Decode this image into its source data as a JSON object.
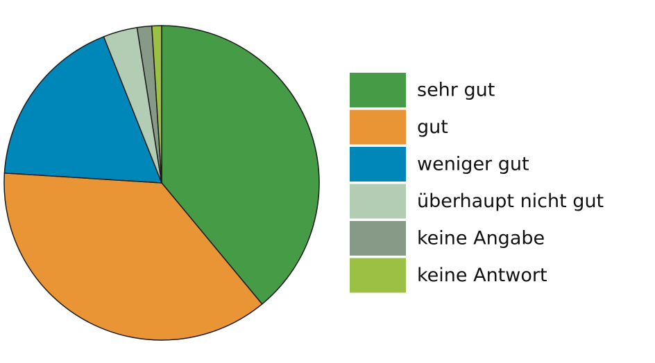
{
  "chart_data": {
    "type": "pie",
    "categories": [
      "sehr gut",
      "gut",
      "weniger gut",
      "überhaupt nicht gut",
      "keine Angabe",
      "keine Antwort"
    ],
    "values": [
      39,
      37,
      18,
      3.5,
      1.5,
      1
    ],
    "colors": [
      "#469b47",
      "#e99536",
      "#0087ba",
      "#b3cdb4",
      "#879a87",
      "#9cc043"
    ],
    "legend": "right"
  }
}
